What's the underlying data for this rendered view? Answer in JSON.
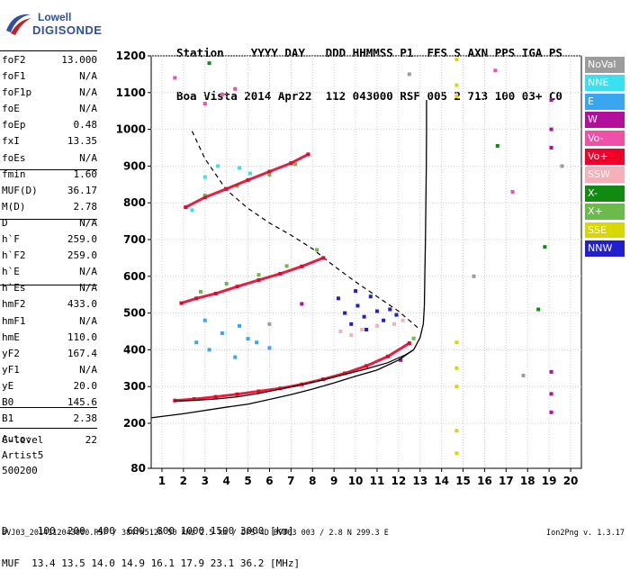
{
  "logo": {
    "line1": "Lowell",
    "line2": "DIGISONDE"
  },
  "header": {
    "labels_line": "Station    YYYY DAY   DDD HHMMSS P1  FFS S AXN PPS IGA PS",
    "values_line": "Boa Vista 2014 Apr22  112 043000 RSF 005 2 713 100 03+ C0"
  },
  "params": [
    {
      "label": "foF2",
      "value": "13.000"
    },
    {
      "label": "foF1",
      "value": "N/A"
    },
    {
      "label": "foF1p",
      "value": "N/A"
    },
    {
      "label": "foE",
      "value": "N/A"
    },
    {
      "label": "foEp",
      "value": "0.48"
    },
    {
      "label": "fxI",
      "value": "13.35"
    },
    {
      "label": "foEs",
      "value": "N/A"
    },
    {
      "label": "fmin",
      "value": "1.60"
    },
    {
      "label": "MUF(D)",
      "value": "36.17"
    },
    {
      "label": "M(D)",
      "value": "2.78"
    },
    {
      "label": "D",
      "value": "N/A"
    },
    {
      "label": "h`F",
      "value": "259.0"
    },
    {
      "label": "h`F2",
      "value": "259.0"
    },
    {
      "label": "h`E",
      "value": "N/A"
    },
    {
      "label": "h`Es",
      "value": "N/A"
    },
    {
      "label": "hmF2",
      "value": "433.0"
    },
    {
      "label": "hmF1",
      "value": "N/A"
    },
    {
      "label": "hmE",
      "value": "110.0"
    },
    {
      "label": "yF2",
      "value": "167.4"
    },
    {
      "label": "yF1",
      "value": "N/A"
    },
    {
      "label": "yE",
      "value": "20.0"
    },
    {
      "label": "B0",
      "value": "145.6"
    },
    {
      "label": "B1",
      "value": "2.38"
    },
    {
      "label": "C-level",
      "value": "22"
    }
  ],
  "autoscale": {
    "line1": "Auto:",
    "line2": "Artist5",
    "line3": "500200"
  },
  "muf_table": {
    "d_line": "D     100  200  400  600  800 1000 1500 3000 [km]",
    "muf_line": "MUF  13.4 13.5 14.0 14.9 16.1 17.9 23.1 36.2 [MHz]"
  },
  "footer": {
    "left": "BVJ03_2014112043000.RSF / 384fx512h 50 kHz 2.5 km / DPS-4D BVJ03 003 / 2.8 N 299.3 E",
    "right": "Ion2Png v. 1.3.17"
  },
  "legend": [
    {
      "label": "NoVal",
      "color": "#9c9c9c"
    },
    {
      "label": "NNE",
      "color": "#38e0f0"
    },
    {
      "label": "E",
      "color": "#3ba6f0"
    },
    {
      "label": "W",
      "color": "#b0109c"
    },
    {
      "label": "Vo-",
      "color": "#f050a8"
    },
    {
      "label": "Vo+",
      "color": "#f00028"
    },
    {
      "label": "SSW",
      "color": "#f8b0b8"
    },
    {
      "label": "X-",
      "color": "#108a10"
    },
    {
      "label": "X+",
      "color": "#6cba4c"
    },
    {
      "label": "SSE",
      "color": "#d8d800"
    },
    {
      "label": "NNW",
      "color": "#2020d0"
    }
  ],
  "chart_data": {
    "type": "scatter",
    "xlabel": "",
    "ylabel": "",
    "x_ticks": [
      1,
      2,
      3,
      4,
      5,
      6,
      7,
      8,
      9,
      10,
      11,
      12,
      13,
      14,
      15,
      16,
      17,
      18,
      19,
      20
    ],
    "y_ticks": [
      80,
      200,
      300,
      400,
      500,
      600,
      700,
      800,
      900,
      1000,
      1100,
      1200
    ],
    "xlim": [
      0.5,
      20.5
    ],
    "ylim": [
      80,
      1200
    ],
    "grid": true,
    "series": [
      {
        "name": "Vo+",
        "color": "#f00028",
        "points": [
          [
            1.6,
            262
          ],
          [
            2.5,
            266
          ],
          [
            3.5,
            272
          ],
          [
            4.5,
            279
          ],
          [
            5.5,
            287
          ],
          [
            6.5,
            295
          ],
          [
            7.5,
            306
          ],
          [
            8.5,
            320
          ],
          [
            9.5,
            336
          ],
          [
            10.5,
            356
          ],
          [
            11.5,
            382
          ],
          [
            12.5,
            418
          ],
          [
            1.9,
            527
          ],
          [
            2.6,
            540
          ],
          [
            3.5,
            553
          ],
          [
            4.5,
            572
          ],
          [
            5.5,
            590
          ],
          [
            6.5,
            607
          ],
          [
            7.5,
            627
          ],
          [
            8.5,
            650
          ],
          [
            2.1,
            788
          ],
          [
            3,
            815
          ],
          [
            4,
            838
          ],
          [
            5,
            862
          ],
          [
            6,
            885
          ],
          [
            7,
            908
          ],
          [
            7.8,
            932
          ]
        ]
      },
      {
        "name": "X+",
        "color": "#6cba4c",
        "points": [
          [
            2.8,
            558
          ],
          [
            4,
            580
          ],
          [
            5.5,
            604
          ],
          [
            6.8,
            628
          ],
          [
            8.2,
            672
          ],
          [
            3,
            820
          ],
          [
            4.5,
            846
          ],
          [
            6,
            876
          ],
          [
            7.2,
            905
          ],
          [
            12.7,
            431
          ]
        ]
      },
      {
        "name": "W",
        "color": "#b0109c",
        "points": [
          [
            19.1,
            1080
          ],
          [
            19.1,
            1000
          ],
          [
            19.1,
            950
          ],
          [
            19.1,
            340
          ],
          [
            19.1,
            280
          ],
          [
            19.1,
            230
          ],
          [
            12.1,
            372
          ],
          [
            7.5,
            525
          ]
        ]
      },
      {
        "name": "NNW",
        "color": "#2020d0",
        "points": [
          [
            9.2,
            540
          ],
          [
            9.5,
            500
          ],
          [
            9.8,
            470
          ],
          [
            10.1,
            520
          ],
          [
            10.4,
            490
          ],
          [
            10.7,
            545
          ],
          [
            11,
            505
          ],
          [
            11.3,
            480
          ],
          [
            11.6,
            510
          ],
          [
            11.9,
            495
          ],
          [
            10,
            560
          ],
          [
            10.5,
            455
          ]
        ]
      },
      {
        "name": "E",
        "color": "#3ba6f0",
        "points": [
          [
            2.6,
            420
          ],
          [
            3.2,
            400
          ],
          [
            3.8,
            445
          ],
          [
            4.4,
            380
          ],
          [
            5,
            430
          ],
          [
            5.4,
            420
          ],
          [
            6,
            405
          ],
          [
            3,
            480
          ],
          [
            4.6,
            465
          ]
        ]
      },
      {
        "name": "NNE",
        "color": "#38e0f0",
        "points": [
          [
            3,
            870
          ],
          [
            3.6,
            900
          ],
          [
            4.6,
            895
          ],
          [
            5.1,
            880
          ],
          [
            2.4,
            780
          ]
        ]
      },
      {
        "name": "SSE",
        "color": "#d8d800",
        "points": [
          [
            14.7,
            1190
          ],
          [
            14.7,
            1120
          ],
          [
            14.7,
            1090
          ],
          [
            14.7,
            420
          ],
          [
            14.7,
            350
          ],
          [
            14.7,
            300
          ],
          [
            14.7,
            180
          ],
          [
            14.7,
            120
          ]
        ]
      },
      {
        "name": "SSW",
        "color": "#f8b0b8",
        "points": [
          [
            9.3,
            450
          ],
          [
            9.8,
            440
          ],
          [
            10.3,
            455
          ],
          [
            11,
            465
          ],
          [
            11.8,
            470
          ],
          [
            12.2,
            480
          ]
        ]
      },
      {
        "name": "Vo-",
        "color": "#f050a8",
        "points": [
          [
            3,
            1070
          ],
          [
            3.8,
            1095
          ],
          [
            4.4,
            1110
          ],
          [
            1.6,
            1140
          ],
          [
            16.5,
            1160
          ],
          [
            17.3,
            830
          ]
        ]
      },
      {
        "name": "X-",
        "color": "#108a10",
        "points": [
          [
            16.6,
            955
          ],
          [
            18.8,
            680
          ],
          [
            18.5,
            510
          ],
          [
            3.2,
            1180
          ]
        ]
      },
      {
        "name": "NoVal",
        "color": "#9c9c9c",
        "points": [
          [
            6,
            470
          ],
          [
            12.5,
            1150
          ],
          [
            15.5,
            600
          ],
          [
            17.8,
            330
          ],
          [
            19.6,
            900
          ]
        ]
      }
    ],
    "profile": [
      [
        0.5,
        215
      ],
      [
        2,
        226
      ],
      [
        4,
        244
      ],
      [
        5,
        252
      ],
      [
        6,
        265
      ],
      [
        7,
        278
      ],
      [
        8,
        293
      ],
      [
        9,
        310
      ],
      [
        10,
        328
      ],
      [
        11,
        345
      ],
      [
        12,
        372
      ],
      [
        12.7,
        400
      ],
      [
        13.0,
        433
      ],
      [
        13.15,
        470
      ],
      [
        13.2,
        520
      ],
      [
        13.22,
        600
      ],
      [
        13.25,
        700
      ],
      [
        13.27,
        800
      ],
      [
        13.29,
        900
      ],
      [
        13.3,
        1000
      ],
      [
        13.3,
        1080
      ]
    ],
    "dashed": [
      [
        2.4,
        995
      ],
      [
        3,
        920
      ],
      [
        4,
        835
      ],
      [
        5,
        785
      ],
      [
        6,
        745
      ],
      [
        7,
        712
      ],
      [
        8,
        675
      ],
      [
        9,
        628
      ],
      [
        10,
        585
      ],
      [
        11,
        545
      ],
      [
        12,
        505
      ],
      [
        12.9,
        460
      ]
    ]
  }
}
